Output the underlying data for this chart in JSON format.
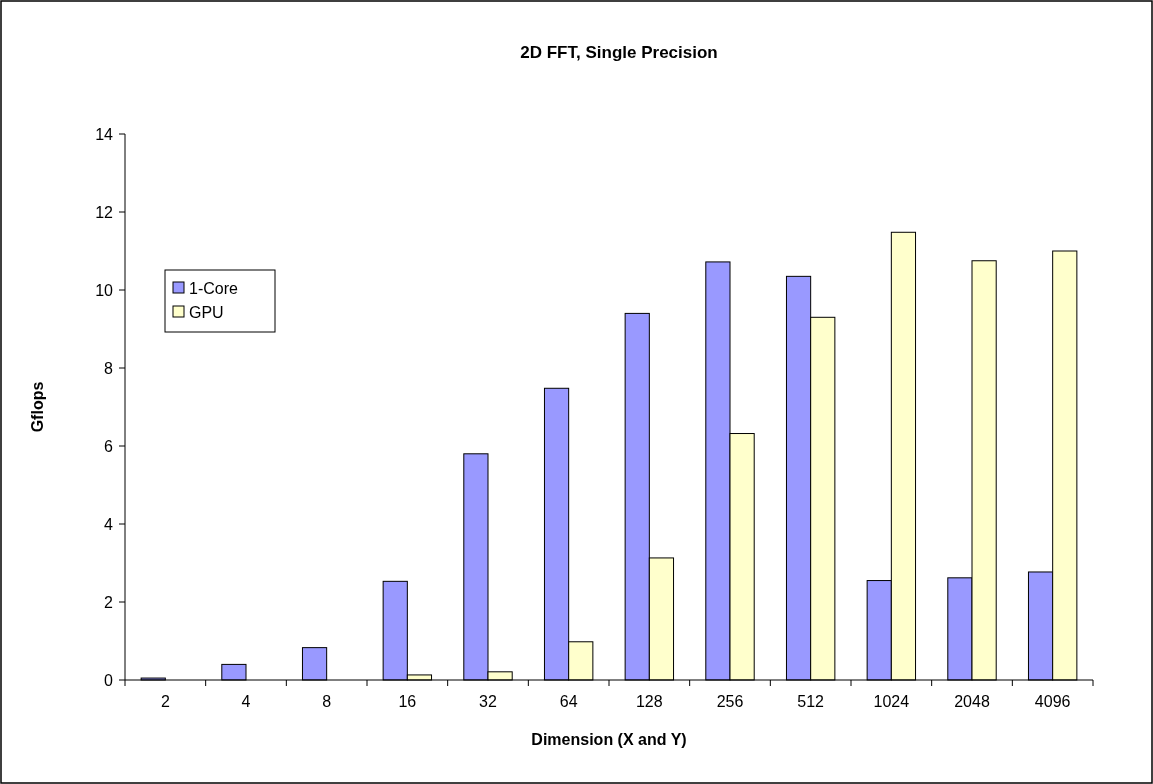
{
  "chart_data": {
    "type": "bar",
    "title": "2D FFT, Single Precision",
    "xlabel": "Dimension (X and Y)",
    "ylabel": "Gflops",
    "categories": [
      "2",
      "4",
      "8",
      "16",
      "32",
      "64",
      "128",
      "256",
      "512",
      "1024",
      "2048",
      "4096"
    ],
    "series": [
      {
        "name": "1-Core",
        "color": "#9999ff",
        "values": [
          0.05,
          0.4,
          0.83,
          2.53,
          5.8,
          7.48,
          9.4,
          10.72,
          10.35,
          2.55,
          2.62,
          2.77
        ]
      },
      {
        "name": "GPU",
        "color": "#ffffcc",
        "values": [
          null,
          null,
          null,
          0.13,
          0.21,
          0.98,
          3.13,
          6.32,
          9.3,
          11.48,
          10.75,
          11.0
        ]
      }
    ],
    "ylim": [
      0,
      14
    ],
    "yticks": [
      0,
      2,
      4,
      6,
      8,
      10,
      12,
      14
    ],
    "grid": false,
    "legend": "left"
  }
}
